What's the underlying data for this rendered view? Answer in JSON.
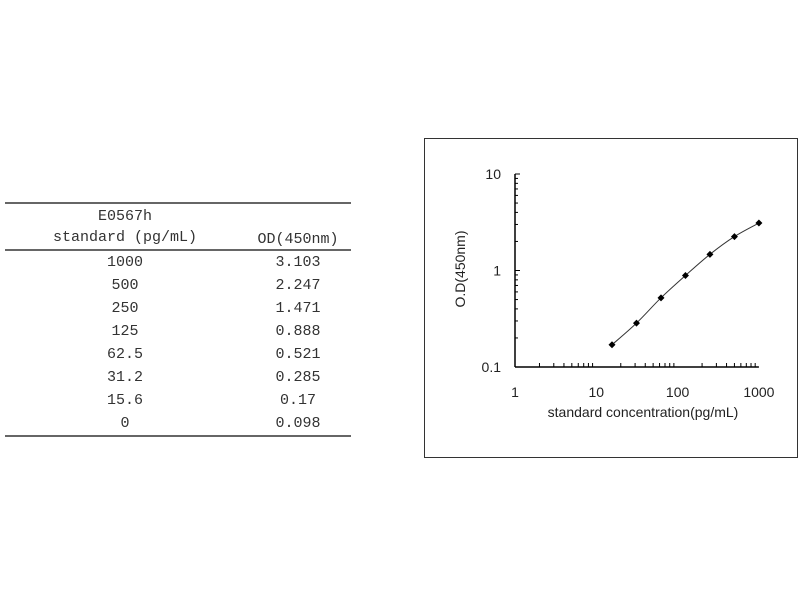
{
  "table": {
    "header": {
      "col1_line1": "E0567h",
      "col1_line2": "standard (pg/mL)",
      "col2": "OD(450nm)"
    },
    "rows": [
      {
        "std": "1000",
        "od": "3.103"
      },
      {
        "std": "500",
        "od": "2.247"
      },
      {
        "std": "250",
        "od": "1.471"
      },
      {
        "std": "125",
        "od": "0.888"
      },
      {
        "std": "62.5",
        "od": "0.521"
      },
      {
        "std": "31.2",
        "od": "0.285"
      },
      {
        "std": "15.6",
        "od": "0.17"
      },
      {
        "std": "0",
        "od": "0.098"
      }
    ]
  },
  "chart_data": {
    "type": "line",
    "xlabel": "standard concentration(pg/mL)",
    "ylabel": "O.D(450nm)",
    "x_scale": "log",
    "y_scale": "log",
    "xlim": [
      1,
      1000
    ],
    "ylim": [
      0.1,
      10
    ],
    "x_ticks": [
      "1",
      "10",
      "100",
      "1000"
    ],
    "y_ticks": [
      "0.1",
      "1",
      "10"
    ],
    "grid": false,
    "x": [
      15.6,
      31.2,
      62.5,
      125,
      250,
      500,
      1000
    ],
    "y": [
      0.17,
      0.285,
      0.521,
      0.888,
      1.471,
      2.247,
      3.103
    ],
    "marker": "diamond",
    "color": "#000000"
  }
}
